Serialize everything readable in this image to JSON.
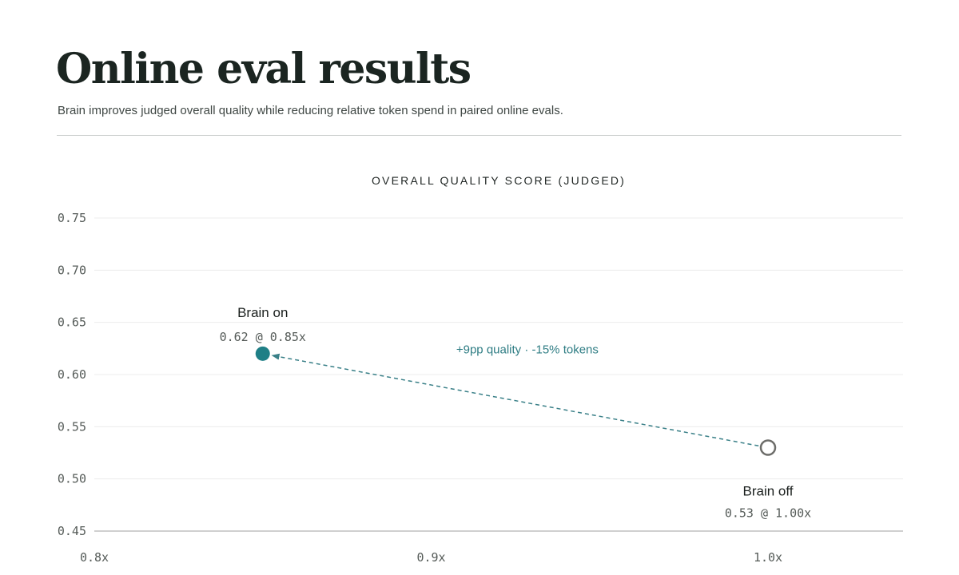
{
  "header": {
    "title": "Online eval results",
    "subtitle": "Brain improves judged overall quality while reducing relative token spend in paired online evals."
  },
  "colors": {
    "brain_on": "#1f7f86",
    "brain_off": "#6d6d6a",
    "arrow": "#3a8088",
    "grid": "#ececec",
    "axis": "#b4b4b4"
  },
  "chart_data": {
    "type": "scatter",
    "title": "OVERALL QUALITY SCORE (JUDGED)",
    "xlabel": "",
    "ylabel": "",
    "xlim": [
      0.8,
      1.05
    ],
    "ylim": [
      0.45,
      0.75
    ],
    "x_ticks": [
      {
        "value": 0.8,
        "label": "0.8x"
      },
      {
        "value": 0.9,
        "label": "0.9x"
      },
      {
        "value": 1.0,
        "label": "1.0x"
      }
    ],
    "y_ticks": [
      {
        "value": 0.75,
        "label": "0.75"
      },
      {
        "value": 0.7,
        "label": "0.70"
      },
      {
        "value": 0.65,
        "label": "0.65"
      },
      {
        "value": 0.6,
        "label": "0.60"
      },
      {
        "value": 0.55,
        "label": "0.55"
      },
      {
        "value": 0.5,
        "label": "0.50"
      },
      {
        "value": 0.45,
        "label": "0.45"
      }
    ],
    "grid": true,
    "points": [
      {
        "key": "brain-on",
        "name": "Brain on",
        "x": 0.85,
        "y": 0.62,
        "value_label": "0.62 @ 0.85x",
        "marker": "filled",
        "label_position": "above"
      },
      {
        "key": "brain-off",
        "name": "Brain off",
        "x": 1.0,
        "y": 0.53,
        "value_label": "0.53 @ 1.00x",
        "marker": "hollow",
        "label_position": "below"
      }
    ],
    "annotations": [
      {
        "text": "+9pp quality · -15% tokens",
        "from": "brain-off",
        "to": "brain-on",
        "style": "dashed-arrow"
      }
    ]
  }
}
